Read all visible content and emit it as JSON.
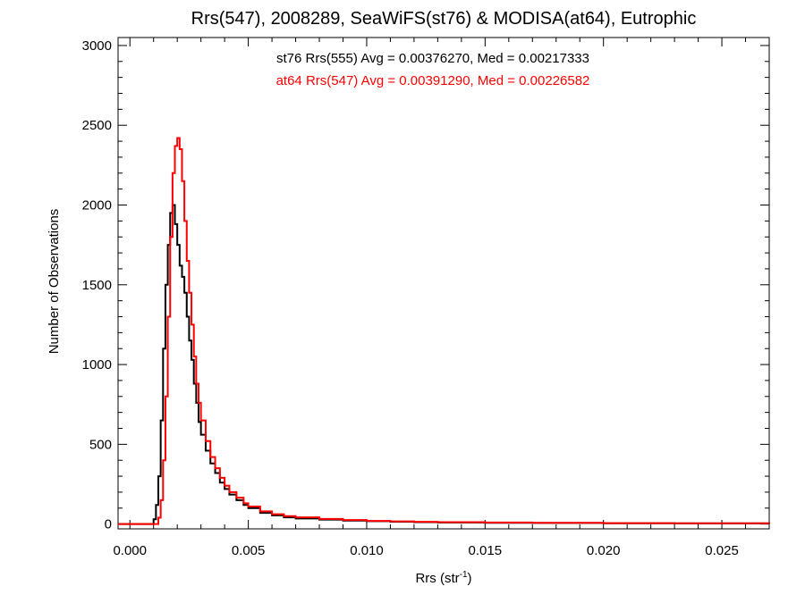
{
  "chart_data": {
    "type": "histogram",
    "title": "Rrs(547), 2008289, SeaWiFS(st76) & MODISA(at64), Eutrophic",
    "xlabel_main": "Rrs (str",
    "xlabel_sup": "-1",
    "xlabel_close": ")",
    "ylabel": "Number of Observations",
    "xlim": [
      -0.0005,
      0.027
    ],
    "ylim": [
      -30,
      3050
    ],
    "x_ticks": [
      0.0,
      0.005,
      0.01,
      0.015,
      0.02,
      0.025
    ],
    "x_tick_labels": [
      "0.000",
      "0.005",
      "0.010",
      "0.015",
      "0.020",
      "0.025"
    ],
    "y_ticks": [
      0,
      500,
      1000,
      1500,
      2000,
      2500,
      3000
    ],
    "y_tick_labels": [
      "0",
      "500",
      "1000",
      "1500",
      "2000",
      "2500",
      "3000"
    ],
    "grid": false,
    "annotations": [
      {
        "text": "st76 Rrs(555) Avg = 0.00376270, Med = 0.00217333",
        "color": "#000000"
      },
      {
        "text": "at64 Rrs(547) Avg = 0.00391290, Med = 0.00226582",
        "color": "#ff0000"
      }
    ],
    "series": [
      {
        "color": "#000000",
        "points": [
          [
            -0.0005,
            0
          ],
          [
            0.0009,
            0
          ],
          [
            0.001,
            30
          ],
          [
            0.0011,
            120
          ],
          [
            0.0012,
            300
          ],
          [
            0.0013,
            650
          ],
          [
            0.0014,
            1100
          ],
          [
            0.0015,
            1500
          ],
          [
            0.0016,
            1750
          ],
          [
            0.0017,
            1950
          ],
          [
            0.0018,
            2000
          ],
          [
            0.0019,
            1880
          ],
          [
            0.002,
            1750
          ],
          [
            0.0021,
            1620
          ],
          [
            0.0022,
            1550
          ],
          [
            0.0023,
            1450
          ],
          [
            0.0024,
            1300
          ],
          [
            0.0025,
            1150
          ],
          [
            0.0026,
            1030
          ],
          [
            0.0027,
            880
          ],
          [
            0.0028,
            760
          ],
          [
            0.0029,
            640
          ],
          [
            0.003,
            560
          ],
          [
            0.0032,
            460
          ],
          [
            0.0034,
            380
          ],
          [
            0.0036,
            320
          ],
          [
            0.0038,
            260
          ],
          [
            0.004,
            220
          ],
          [
            0.0042,
            185
          ],
          [
            0.0045,
            150
          ],
          [
            0.0048,
            120
          ],
          [
            0.005,
            100
          ],
          [
            0.0055,
            70
          ],
          [
            0.006,
            55
          ],
          [
            0.0065,
            42
          ],
          [
            0.007,
            35
          ],
          [
            0.008,
            28
          ],
          [
            0.009,
            22
          ],
          [
            0.01,
            18
          ],
          [
            0.011,
            15
          ],
          [
            0.012,
            12
          ],
          [
            0.013,
            10
          ],
          [
            0.015,
            8
          ],
          [
            0.017,
            7
          ],
          [
            0.02,
            5
          ],
          [
            0.023,
            4
          ],
          [
            0.027,
            3
          ]
        ]
      },
      {
        "color": "#ff0000",
        "points": [
          [
            -0.0005,
            0
          ],
          [
            0.0011,
            0
          ],
          [
            0.0012,
            40
          ],
          [
            0.0013,
            150
          ],
          [
            0.0014,
            400
          ],
          [
            0.0015,
            800
          ],
          [
            0.0016,
            1300
          ],
          [
            0.0017,
            1800
          ],
          [
            0.0018,
            2200
          ],
          [
            0.0019,
            2370
          ],
          [
            0.002,
            2420
          ],
          [
            0.0021,
            2350
          ],
          [
            0.0022,
            2150
          ],
          [
            0.0023,
            1900
          ],
          [
            0.0024,
            1650
          ],
          [
            0.0025,
            1450
          ],
          [
            0.0026,
            1250
          ],
          [
            0.0027,
            1050
          ],
          [
            0.0028,
            880
          ],
          [
            0.0029,
            760
          ],
          [
            0.003,
            650
          ],
          [
            0.0032,
            520
          ],
          [
            0.0034,
            420
          ],
          [
            0.0036,
            350
          ],
          [
            0.0038,
            290
          ],
          [
            0.004,
            240
          ],
          [
            0.0042,
            200
          ],
          [
            0.0045,
            165
          ],
          [
            0.0048,
            130
          ],
          [
            0.005,
            110
          ],
          [
            0.0055,
            80
          ],
          [
            0.006,
            62
          ],
          [
            0.0065,
            50
          ],
          [
            0.007,
            42
          ],
          [
            0.008,
            32
          ],
          [
            0.009,
            25
          ],
          [
            0.01,
            20
          ],
          [
            0.011,
            17
          ],
          [
            0.012,
            14
          ],
          [
            0.013,
            12
          ],
          [
            0.015,
            10
          ],
          [
            0.017,
            8
          ],
          [
            0.02,
            6
          ],
          [
            0.023,
            5
          ],
          [
            0.027,
            4
          ]
        ]
      }
    ]
  }
}
